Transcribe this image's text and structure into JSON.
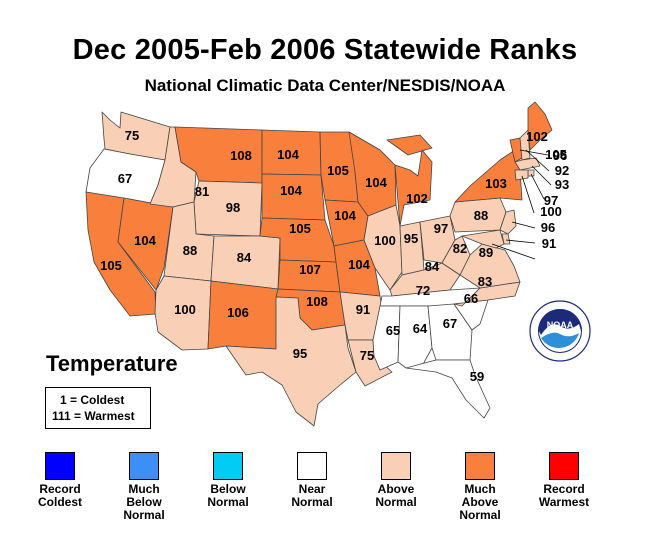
{
  "title": "Dec 2005-Feb 2006 Statewide Ranks",
  "subtitle": "National Climatic Data Center/NESDIS/NOAA",
  "variable": "Temperature",
  "key": {
    "coldest": "1 = Coldest",
    "warmest": "111 = Warmest"
  },
  "legend": [
    {
      "label": "Record\nColdest",
      "color": "#0000ff"
    },
    {
      "label": "Much\nBelow\nNormal",
      "color": "#3d8ff5"
    },
    {
      "label": "Below\nNormal",
      "color": "#00ccf5"
    },
    {
      "label": "Near\nNormal",
      "color": "#ffffff"
    },
    {
      "label": "Above\nNormal",
      "color": "#f9cfb5"
    },
    {
      "label": "Much\nAbove\nNormal",
      "color": "#f97f3c"
    },
    {
      "label": "Record\nWarmest",
      "color": "#fd0000"
    }
  ],
  "logo": {
    "name": "noaa-logo",
    "text": "NOAA"
  },
  "chart_data": {
    "type": "choropleth",
    "states": [
      {
        "abbr": "WA",
        "rank": 75,
        "category": "Above Normal"
      },
      {
        "abbr": "OR",
        "rank": 67,
        "category": "Near Normal"
      },
      {
        "abbr": "CA",
        "rank": 105,
        "category": "Much Above Normal"
      },
      {
        "abbr": "NV",
        "rank": 104,
        "category": "Much Above Normal"
      },
      {
        "abbr": "ID",
        "rank": 81,
        "category": "Above Normal"
      },
      {
        "abbr": "MT",
        "rank": 108,
        "category": "Much Above Normal"
      },
      {
        "abbr": "WY",
        "rank": 98,
        "category": "Above Normal"
      },
      {
        "abbr": "UT",
        "rank": 88,
        "category": "Above Normal"
      },
      {
        "abbr": "AZ",
        "rank": 100,
        "category": "Above Normal"
      },
      {
        "abbr": "CO",
        "rank": 84,
        "category": "Above Normal"
      },
      {
        "abbr": "NM",
        "rank": 106,
        "category": "Much Above Normal"
      },
      {
        "abbr": "ND",
        "rank": 104,
        "category": "Much Above Normal"
      },
      {
        "abbr": "SD",
        "rank": 104,
        "category": "Much Above Normal"
      },
      {
        "abbr": "NE",
        "rank": 105,
        "category": "Much Above Normal"
      },
      {
        "abbr": "KS",
        "rank": 107,
        "category": "Much Above Normal"
      },
      {
        "abbr": "OK",
        "rank": 108,
        "category": "Much Above Normal"
      },
      {
        "abbr": "TX",
        "rank": 95,
        "category": "Above Normal"
      },
      {
        "abbr": "MN",
        "rank": 105,
        "category": "Much Above Normal"
      },
      {
        "abbr": "IA",
        "rank": 104,
        "category": "Much Above Normal"
      },
      {
        "abbr": "MO",
        "rank": 104,
        "category": "Much Above Normal"
      },
      {
        "abbr": "AR",
        "rank": 91,
        "category": "Above Normal"
      },
      {
        "abbr": "LA",
        "rank": 75,
        "category": "Above Normal"
      },
      {
        "abbr": "WI",
        "rank": 104,
        "category": "Much Above Normal"
      },
      {
        "abbr": "IL",
        "rank": 100,
        "category": "Above Normal"
      },
      {
        "abbr": "MI",
        "rank": 102,
        "category": "Much Above Normal"
      },
      {
        "abbr": "IN",
        "rank": 95,
        "category": "Above Normal"
      },
      {
        "abbr": "OH",
        "rank": 97,
        "category": "Above Normal"
      },
      {
        "abbr": "KY",
        "rank": 84,
        "category": "Above Normal"
      },
      {
        "abbr": "TN",
        "rank": 72,
        "category": "Near Normal"
      },
      {
        "abbr": "MS",
        "rank": 65,
        "category": "Near Normal"
      },
      {
        "abbr": "AL",
        "rank": 64,
        "category": "Near Normal"
      },
      {
        "abbr": "GA",
        "rank": 67,
        "category": "Near Normal"
      },
      {
        "abbr": "FL",
        "rank": 59,
        "category": "Near Normal"
      },
      {
        "abbr": "SC",
        "rank": 66,
        "category": "Near Normal"
      },
      {
        "abbr": "NC",
        "rank": 83,
        "category": "Above Normal"
      },
      {
        "abbr": "VA",
        "rank": 89,
        "category": "Above Normal"
      },
      {
        "abbr": "WV",
        "rank": 82,
        "category": "Above Normal"
      },
      {
        "abbr": "PA",
        "rank": 88,
        "category": "Above Normal"
      },
      {
        "abbr": "NY",
        "rank": 103,
        "category": "Much Above Normal"
      },
      {
        "abbr": "VT",
        "rank": 105,
        "category": "Much Above Normal"
      },
      {
        "abbr": "NH",
        "rank": 96,
        "category": "Above Normal"
      },
      {
        "abbr": "ME",
        "rank": 102,
        "category": "Much Above Normal"
      },
      {
        "abbr": "MA",
        "rank": 92,
        "category": "Above Normal"
      },
      {
        "abbr": "RI",
        "rank": 93,
        "category": "Above Normal"
      },
      {
        "abbr": "CT",
        "rank": 97,
        "category": "Above Normal"
      },
      {
        "abbr": "NJ",
        "rank": 100,
        "category": "Above Normal"
      },
      {
        "abbr": "DE",
        "rank": 96,
        "category": "Above Normal"
      },
      {
        "abbr": "MD",
        "rank": 91,
        "category": "Above Normal"
      }
    ]
  }
}
